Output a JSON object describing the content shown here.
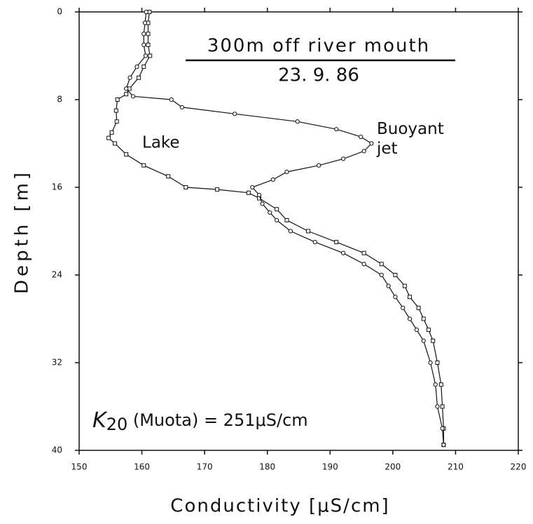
{
  "chart_data": {
    "type": "line",
    "title": "300m off river mouth",
    "subtitle": "23. 9. 86",
    "x_label": "Conductivity   [μS/cm]",
    "y_label": "Depth  [m]",
    "annotation": {
      "symbol": "K",
      "subscript": "20",
      "text": " (Muota) = 251μS/cm"
    },
    "xlim": [
      150,
      220
    ],
    "xticks": [
      150,
      160,
      170,
      180,
      190,
      200,
      210,
      220
    ],
    "ylim": [
      0,
      40
    ],
    "yticks": [
      0,
      8,
      16,
      24,
      32,
      40
    ],
    "y_inverted": true,
    "series": [
      {
        "name": "Lake",
        "color": "#111111",
        "marker": "square",
        "x": [
          161.2,
          161,
          161,
          161,
          161.3,
          160.3,
          159.5,
          158,
          157.5,
          156.1,
          155.9,
          156,
          155.2,
          154.7,
          155.7,
          157.5,
          160.3,
          164.2,
          167,
          172,
          177,
          178.7,
          181.5,
          183.1,
          186.5,
          191,
          195.4,
          198.2,
          200.4,
          201.9,
          202.7,
          204.1,
          204.9,
          205.7,
          206.4,
          207.1,
          207.7,
          207.9,
          208.1,
          208.1
        ],
        "values": [
          0,
          1,
          2,
          3,
          4,
          5,
          6,
          7,
          7.5,
          8,
          9,
          10,
          11,
          11.5,
          12,
          13,
          14,
          15,
          16,
          16.2,
          16.5,
          17,
          18,
          19,
          20,
          21,
          22,
          23,
          24,
          25,
          26,
          27,
          28,
          29,
          30,
          32,
          34,
          36,
          38,
          39.5
        ]
      },
      {
        "name": "Buoyant jet",
        "color": "#111111",
        "marker": "circle",
        "x": [
          160.7,
          160.5,
          160.3,
          160.3,
          160.6,
          159.2,
          158.1,
          157.5,
          158.6,
          164.7,
          166.4,
          174.8,
          184.8,
          191,
          194.9,
          196.6,
          195.4,
          192.1,
          188.2,
          183.1,
          180.9,
          177.6,
          178.7,
          179.2,
          180.4,
          181.5,
          183.7,
          187.6,
          192.1,
          195.4,
          198.2,
          199.3,
          200.4,
          201.6,
          202.7,
          203.8,
          204.9,
          206,
          206.8,
          207.1,
          207.9,
          208.1
        ],
        "values": [
          0,
          1,
          2,
          3,
          4,
          5,
          6,
          7,
          7.7,
          8,
          8.7,
          9.3,
          10,
          10.7,
          11.4,
          12,
          12.7,
          13.4,
          14,
          14.6,
          15.3,
          16,
          16.7,
          17.5,
          18.3,
          19,
          20,
          21,
          22,
          23,
          24,
          25,
          26,
          27,
          28,
          29,
          30,
          32,
          34,
          36,
          38,
          39.5
        ]
      }
    ]
  }
}
